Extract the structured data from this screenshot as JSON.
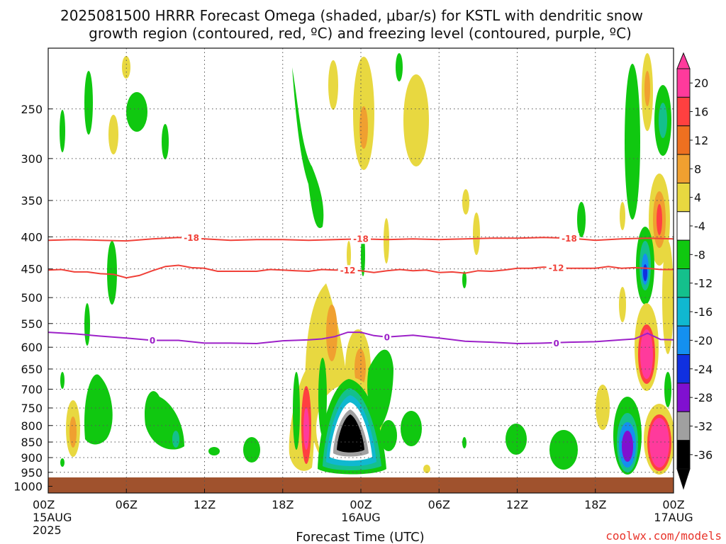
{
  "title_line1": "2025081500 HRRR Forecast Omega (shaded, μbar/s) for KSTL with dendritic snow",
  "title_line2": "growth region (contoured, red, ºC) and freezing level (contoured, purple, ºC)",
  "credit": "coolwx.com/models",
  "chart_data": {
    "type": "heatmap",
    "xlabel": "Forecast Time (UTC)",
    "x_ticks": [
      {
        "hour": 0,
        "label": "00Z",
        "sub1": "15AUG",
        "sub2": "2025"
      },
      {
        "hour": 6,
        "label": "06Z",
        "sub1": "",
        "sub2": ""
      },
      {
        "hour": 12,
        "label": "12Z",
        "sub1": "",
        "sub2": ""
      },
      {
        "hour": 18,
        "label": "18Z",
        "sub1": "",
        "sub2": ""
      },
      {
        "hour": 24,
        "label": "00Z",
        "sub1": "16AUG",
        "sub2": ""
      },
      {
        "hour": 30,
        "label": "06Z",
        "sub1": "",
        "sub2": ""
      },
      {
        "hour": 36,
        "label": "12Z",
        "sub1": "",
        "sub2": ""
      },
      {
        "hour": 42,
        "label": "18Z",
        "sub1": "",
        "sub2": ""
      },
      {
        "hour": 48,
        "label": "00Z",
        "sub1": "17AUG",
        "sub2": ""
      }
    ],
    "xlim": [
      0,
      48
    ],
    "y_ticks": [
      250,
      300,
      350,
      400,
      450,
      500,
      550,
      600,
      650,
      700,
      750,
      800,
      850,
      900,
      950,
      1000
    ],
    "ylim": [
      1025,
      200
    ],
    "y_scale": "log-pressure",
    "grid": true,
    "colorbar": {
      "labels": [
        "20",
        "16",
        "12",
        "8",
        "4",
        "-4",
        "-8",
        "-12",
        "-16",
        "-20",
        "-24",
        "-28",
        "-32",
        "-36"
      ],
      "colors": [
        "#ff3a9c",
        "#ff4040",
        "#ee7020",
        "#f0a030",
        "#e8d840",
        "#ffffff",
        "#10c810",
        "#14c08c",
        "#10b8d0",
        "#1490f0",
        "#1030e0",
        "#8010d0",
        "#a0a0a0",
        "#000000"
      ]
    },
    "contours": [
      {
        "kind": "dendritic",
        "label": "-18",
        "color": "#f04038",
        "points": [
          [
            0,
            405
          ],
          [
            2,
            404
          ],
          [
            4,
            405
          ],
          [
            6,
            406
          ],
          [
            8,
            403
          ],
          [
            10,
            401
          ],
          [
            12,
            403
          ],
          [
            14,
            405
          ],
          [
            16,
            404
          ],
          [
            18,
            404
          ],
          [
            20,
            405
          ],
          [
            22,
            404
          ],
          [
            24,
            403
          ],
          [
            26,
            404
          ],
          [
            28,
            403
          ],
          [
            30,
            404
          ],
          [
            32,
            403
          ],
          [
            34,
            402
          ],
          [
            36,
            402
          ],
          [
            38,
            401
          ],
          [
            40,
            402
          ],
          [
            42,
            405
          ],
          [
            44,
            403
          ],
          [
            46,
            402
          ],
          [
            48,
            403
          ]
        ],
        "label_hours": [
          11,
          24,
          40
        ]
      },
      {
        "kind": "dendritic",
        "label": "-12",
        "color": "#f04038",
        "points": [
          [
            0,
            452
          ],
          [
            1,
            451
          ],
          [
            2,
            455
          ],
          [
            3,
            455
          ],
          [
            4,
            458
          ],
          [
            5,
            459
          ],
          [
            6,
            465
          ],
          [
            7,
            461
          ],
          [
            8,
            453
          ],
          [
            9,
            446
          ],
          [
            10,
            444
          ],
          [
            11,
            448
          ],
          [
            12,
            449
          ],
          [
            13,
            454
          ],
          [
            14,
            454
          ],
          [
            15,
            454
          ],
          [
            16,
            454
          ],
          [
            17,
            451
          ],
          [
            18,
            452
          ],
          [
            19,
            453
          ],
          [
            20,
            454
          ],
          [
            21,
            451
          ],
          [
            22,
            452
          ],
          [
            23,
            452
          ],
          [
            24,
            453
          ],
          [
            25,
            456
          ],
          [
            26,
            453
          ],
          [
            27,
            451
          ],
          [
            28,
            453
          ],
          [
            29,
            452
          ],
          [
            30,
            456
          ],
          [
            31,
            455
          ],
          [
            32,
            457
          ],
          [
            33,
            453
          ],
          [
            34,
            454
          ],
          [
            35,
            452
          ],
          [
            36,
            449
          ],
          [
            37,
            449
          ],
          [
            38,
            447
          ],
          [
            39,
            448
          ],
          [
            40,
            449
          ],
          [
            41,
            449
          ],
          [
            42,
            449
          ],
          [
            43,
            446
          ],
          [
            44,
            449
          ],
          [
            45,
            448
          ],
          [
            46,
            449
          ],
          [
            47,
            451
          ],
          [
            48,
            451
          ]
        ],
        "label_hours": [
          23,
          39
        ]
      },
      {
        "kind": "freezing",
        "label": "0",
        "color": "#9c20c8",
        "points": [
          [
            0,
            568
          ],
          [
            2,
            571
          ],
          [
            4,
            576
          ],
          [
            6,
            580
          ],
          [
            8,
            585
          ],
          [
            10,
            585
          ],
          [
            12,
            591
          ],
          [
            14,
            591
          ],
          [
            16,
            592
          ],
          [
            18,
            586
          ],
          [
            20,
            584
          ],
          [
            21,
            582
          ],
          [
            22,
            577
          ],
          [
            23,
            568
          ],
          [
            24,
            568
          ],
          [
            25,
            575
          ],
          [
            26,
            578
          ],
          [
            28,
            574
          ],
          [
            30,
            580
          ],
          [
            32,
            587
          ],
          [
            34,
            589
          ],
          [
            36,
            592
          ],
          [
            38,
            591
          ],
          [
            40,
            589
          ],
          [
            42,
            588
          ],
          [
            44,
            584
          ],
          [
            45,
            582
          ],
          [
            46,
            570
          ],
          [
            47,
            583
          ],
          [
            48,
            584
          ]
        ],
        "label_hours": [
          8,
          26,
          39
        ]
      }
    ]
  }
}
